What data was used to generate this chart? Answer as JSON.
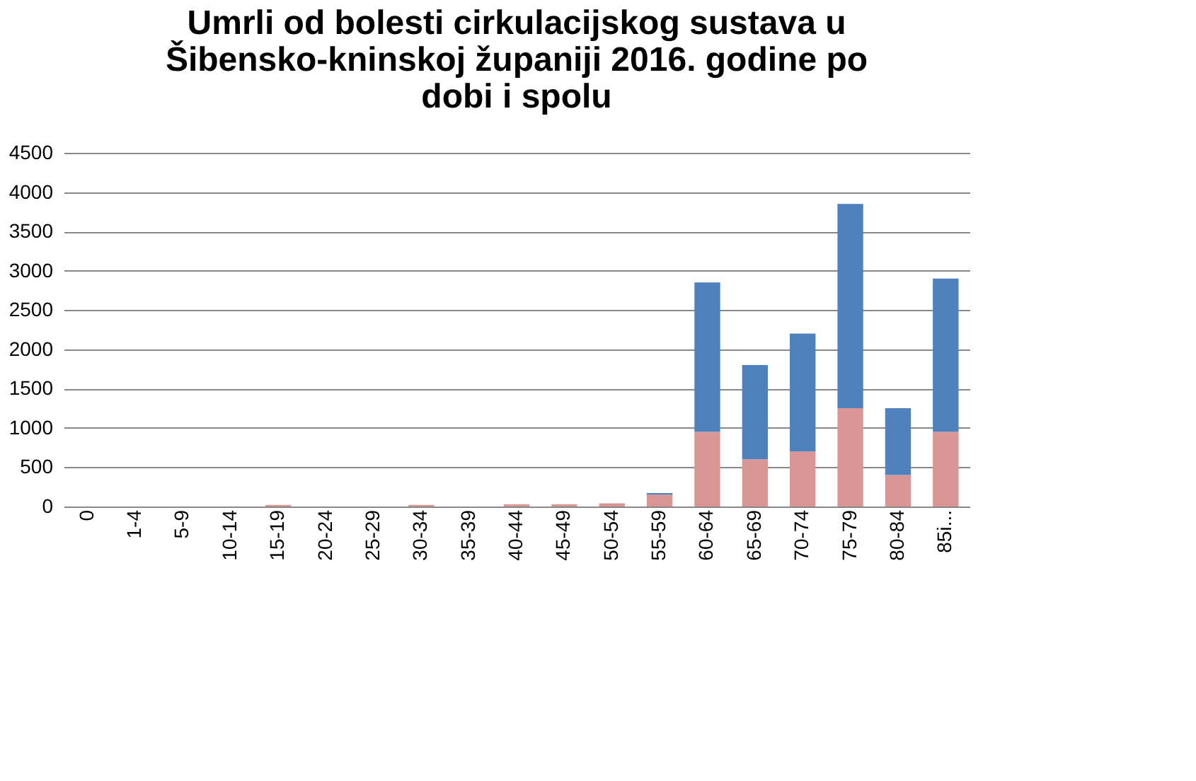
{
  "chart_data": {
    "type": "bar",
    "title": "Umrli od bolesti cirkulacijskog sustava u Šibensko-kninskoj županiji 2016. godine po dobi i spolu",
    "categories": [
      "0",
      "1-4",
      "5-9",
      "10-14",
      "15-19",
      "20-24",
      "25-29",
      "30-34",
      "35-39",
      "40-44",
      "45-49",
      "50-54",
      "55-59",
      "60-64",
      "65-69",
      "70-74",
      "75-79",
      "80-84",
      "85i..."
    ],
    "stacked": true,
    "ylim": [
      0,
      4500
    ],
    "yticks": [
      0,
      500,
      1000,
      1500,
      2000,
      2500,
      3000,
      3500,
      4000,
      4500
    ],
    "grid": "y",
    "legend": false,
    "series": [
      {
        "color": "#d99694",
        "values": [
          0,
          0,
          0,
          0,
          20,
          0,
          0,
          20,
          0,
          30,
          30,
          40,
          150,
          950,
          600,
          700,
          1250,
          400,
          950
        ]
      },
      {
        "color": "#4f81bd",
        "values": [
          0,
          0,
          0,
          0,
          0,
          0,
          0,
          0,
          0,
          0,
          0,
          0,
          20,
          1900,
          1200,
          1500,
          2600,
          850,
          1950
        ]
      }
    ]
  }
}
